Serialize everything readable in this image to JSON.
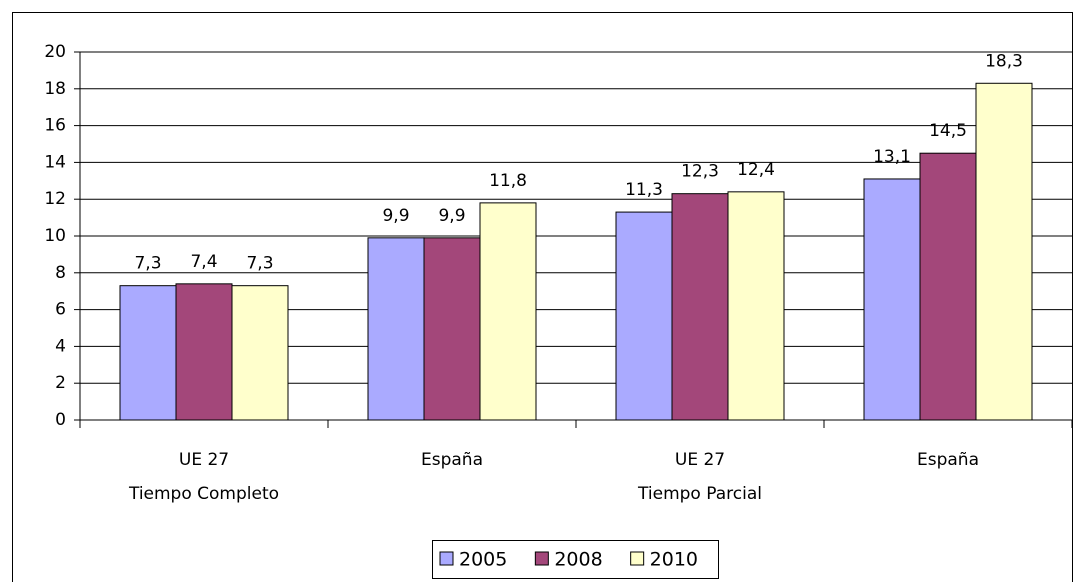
{
  "chart_data": {
    "type": "bar",
    "categories": [
      "UE 27",
      "España",
      "UE 27",
      "España"
    ],
    "group_labels": [
      "Tiempo Completo",
      null,
      "Tiempo Parcial",
      null
    ],
    "series": [
      {
        "name": "2005",
        "color": "#aaaaff",
        "values": [
          7.3,
          9.9,
          11.3,
          13.1
        ],
        "value_labels": [
          "7,3",
          "9,9",
          "11,3",
          "13,1"
        ]
      },
      {
        "name": "2008",
        "color": "#a3477a",
        "values": [
          7.4,
          9.9,
          12.3,
          14.5
        ],
        "value_labels": [
          "7,4",
          "9,9",
          "12,3",
          "14,5"
        ]
      },
      {
        "name": "2010",
        "color": "#ffffcc",
        "values": [
          7.3,
          11.8,
          12.4,
          18.3
        ],
        "value_labels": [
          "7,3",
          "11,8",
          "12,4",
          "18,3"
        ]
      }
    ],
    "ylim": [
      0,
      20
    ],
    "yticks": [
      0,
      2,
      4,
      6,
      8,
      10,
      12,
      14,
      16,
      18,
      20
    ],
    "grid": true,
    "legend": "bottom"
  }
}
